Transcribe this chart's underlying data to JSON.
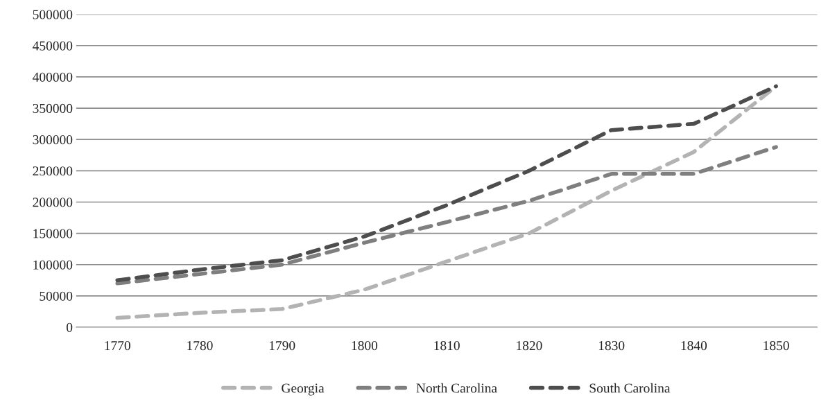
{
  "chart_data": {
    "type": "line",
    "categories": [
      "1770",
      "1780",
      "1790",
      "1800",
      "1810",
      "1820",
      "1830",
      "1840",
      "1850"
    ],
    "series": [
      {
        "name": "Georgia",
        "color": "#b3b3b3",
        "values": [
          15000,
          23000,
          29000,
          60000,
          105000,
          150000,
          218000,
          280000,
          385000
        ]
      },
      {
        "name": "North Carolina",
        "color": "#7f7f7f",
        "values": [
          70000,
          85000,
          100000,
          135000,
          168000,
          202000,
          245000,
          245000,
          288000
        ]
      },
      {
        "name": "South Carolina",
        "color": "#4d4d4d",
        "values": [
          75000,
          92000,
          107000,
          145000,
          195000,
          250000,
          315000,
          325000,
          385000
        ]
      }
    ],
    "ylim": [
      0,
      500000
    ],
    "yticks": [
      0,
      50000,
      100000,
      150000,
      200000,
      250000,
      300000,
      350000,
      400000,
      450000,
      500000
    ],
    "grid": "y",
    "legend": "bottom",
    "line_style": "dashed",
    "marker": "none"
  }
}
